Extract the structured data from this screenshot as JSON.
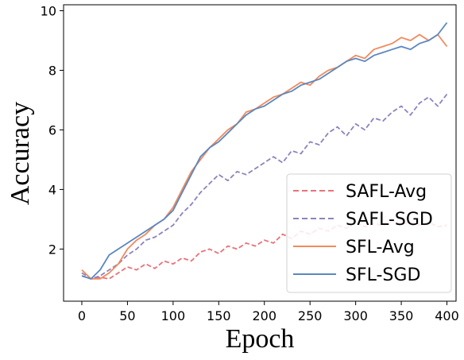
{
  "chart_data": {
    "type": "line",
    "xlabel": "Epoch",
    "ylabel": "Accuracy",
    "xlim": [
      -20,
      410
    ],
    "ylim": [
      0.25,
      10.2
    ],
    "xticks": [
      0,
      50,
      100,
      150,
      200,
      250,
      300,
      350,
      400
    ],
    "yticks": [
      2,
      4,
      6,
      8,
      10
    ],
    "grid": false,
    "legend_position": "lower-right",
    "series": [
      {
        "name": "SAFL-Avg",
        "style": "dashed",
        "color": "#e8737a",
        "x": [
          0,
          10,
          20,
          30,
          40,
          50,
          60,
          70,
          80,
          90,
          100,
          110,
          120,
          130,
          140,
          150,
          160,
          170,
          180,
          190,
          200,
          210,
          220,
          230,
          240,
          250,
          260,
          270,
          280,
          290,
          300,
          310,
          320,
          330,
          340,
          350,
          360,
          370,
          380,
          390,
          400
        ],
        "values": [
          1.1,
          1.0,
          1.05,
          1.0,
          1.2,
          1.4,
          1.3,
          1.5,
          1.35,
          1.6,
          1.5,
          1.7,
          1.6,
          1.9,
          2.0,
          1.85,
          2.1,
          2.0,
          2.2,
          2.1,
          2.3,
          2.2,
          2.5,
          2.35,
          2.6,
          2.5,
          2.7,
          2.6,
          2.8,
          2.7,
          2.9,
          2.75,
          2.85,
          2.8,
          2.95,
          2.85,
          2.9,
          2.8,
          2.9,
          2.75,
          2.8
        ]
      },
      {
        "name": "SAFL-SGD",
        "style": "dashed",
        "color": "#8d83bd",
        "x": [
          0,
          10,
          20,
          30,
          40,
          50,
          60,
          70,
          80,
          90,
          100,
          110,
          120,
          130,
          140,
          150,
          160,
          170,
          180,
          190,
          200,
          210,
          220,
          230,
          240,
          250,
          260,
          270,
          280,
          290,
          300,
          310,
          320,
          330,
          340,
          350,
          360,
          370,
          380,
          390,
          400
        ],
        "values": [
          1.2,
          1.0,
          1.1,
          1.3,
          1.5,
          1.8,
          2.0,
          2.3,
          2.4,
          2.6,
          2.8,
          3.2,
          3.5,
          3.9,
          4.2,
          4.5,
          4.3,
          4.6,
          4.5,
          4.7,
          4.9,
          5.1,
          4.9,
          5.3,
          5.2,
          5.6,
          5.5,
          5.9,
          6.1,
          5.8,
          6.2,
          6.0,
          6.4,
          6.3,
          6.6,
          6.8,
          6.5,
          6.9,
          7.1,
          6.8,
          7.2
        ]
      },
      {
        "name": "SFL-Avg",
        "style": "solid",
        "color": "#f08a5d",
        "x": [
          0,
          10,
          20,
          30,
          40,
          50,
          60,
          70,
          80,
          90,
          100,
          110,
          120,
          130,
          140,
          150,
          160,
          170,
          180,
          190,
          200,
          210,
          220,
          230,
          240,
          250,
          260,
          270,
          280,
          290,
          300,
          310,
          320,
          330,
          340,
          350,
          360,
          370,
          380,
          390,
          400
        ],
        "values": [
          1.3,
          1.0,
          1.0,
          1.2,
          1.5,
          2.0,
          2.3,
          2.5,
          2.8,
          3.0,
          3.4,
          4.0,
          4.6,
          5.0,
          5.4,
          5.7,
          6.0,
          6.2,
          6.6,
          6.7,
          6.9,
          7.1,
          7.2,
          7.4,
          7.6,
          7.5,
          7.8,
          8.0,
          8.1,
          8.3,
          8.5,
          8.4,
          8.7,
          8.8,
          8.9,
          9.1,
          9.0,
          9.2,
          9.0,
          9.2,
          8.8
        ]
      },
      {
        "name": "SFL-SGD",
        "style": "solid",
        "color": "#5b87bf",
        "x": [
          0,
          10,
          20,
          30,
          40,
          50,
          60,
          70,
          80,
          90,
          100,
          110,
          120,
          130,
          140,
          150,
          160,
          170,
          180,
          190,
          200,
          210,
          220,
          230,
          240,
          250,
          260,
          270,
          280,
          290,
          300,
          310,
          320,
          330,
          340,
          350,
          360,
          370,
          380,
          390,
          400
        ],
        "values": [
          1.1,
          1.0,
          1.3,
          1.8,
          2.0,
          2.2,
          2.4,
          2.6,
          2.8,
          3.0,
          3.3,
          3.9,
          4.5,
          5.1,
          5.4,
          5.6,
          5.9,
          6.2,
          6.5,
          6.7,
          6.8,
          7.0,
          7.2,
          7.3,
          7.5,
          7.6,
          7.7,
          7.9,
          8.1,
          8.3,
          8.4,
          8.3,
          8.5,
          8.6,
          8.7,
          8.8,
          8.7,
          8.9,
          9.0,
          9.2,
          9.6
        ]
      }
    ]
  }
}
